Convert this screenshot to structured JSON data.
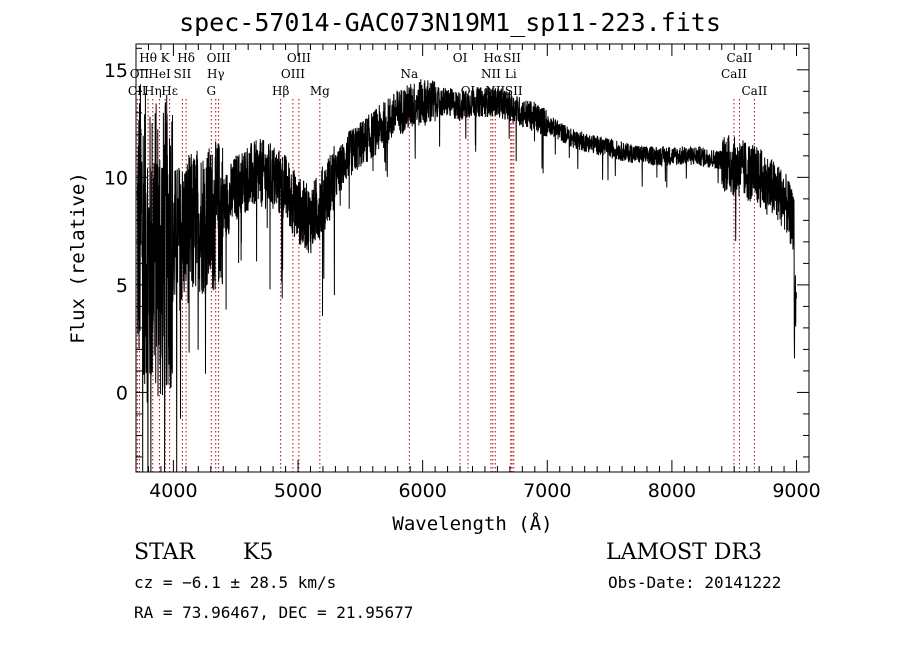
{
  "chart_data": {
    "type": "line",
    "title": "spec-57014-GAC073N19M1_sp11-223.fits",
    "xlabel": "Wavelength (Å)",
    "ylabel": "Flux (relative)",
    "xlim": [
      3700,
      9100
    ],
    "ylim": [
      -3.7,
      16.2
    ],
    "xticks": [
      4000,
      5000,
      6000,
      7000,
      8000,
      9000
    ],
    "yticks": [
      0,
      5,
      10,
      15
    ],
    "line_color": "#000000",
    "marker_color": "#b00000",
    "series": [
      {
        "name": "spectrum",
        "x": [
          3700,
          3750,
          3800,
          3850,
          3900,
          3950,
          4000,
          4100,
          4200,
          4300,
          4400,
          4500,
          4600,
          4700,
          4800,
          4900,
          5000,
          5100,
          5200,
          5300,
          5400,
          5500,
          5600,
          5700,
          5800,
          5900,
          6000,
          6100,
          6200,
          6300,
          6400,
          6500,
          6600,
          6700,
          6800,
          6900,
          7000,
          7200,
          7400,
          7600,
          7800,
          8000,
          8200,
          8400,
          8500,
          8600,
          8700,
          8800,
          8900,
          9000
        ],
        "y": [
          7,
          8,
          6,
          7,
          6,
          7,
          7,
          7.5,
          8,
          8,
          8.5,
          9.5,
          10,
          10.2,
          10,
          9.5,
          8.5,
          8,
          9,
          10,
          11,
          11.5,
          12,
          12.5,
          13,
          13.3,
          13.5,
          13.5,
          13.5,
          13.3,
          13.5,
          13.5,
          13.5,
          13.3,
          13,
          12.8,
          12.5,
          11.8,
          11.5,
          11.2,
          11,
          11,
          11,
          10.8,
          10.5,
          10.3,
          10,
          9.5,
          9,
          7.5
        ]
      }
    ],
    "line_markers": [
      {
        "label": "Hθ",
        "x": 3797,
        "row": 1
      },
      {
        "label": "OII",
        "x": 3727,
        "row": 2
      },
      {
        "label": "Hη",
        "x": 3835,
        "row": 3
      },
      {
        "label": "CII",
        "x": 3710,
        "row": 3
      },
      {
        "label": "K",
        "x": 3934,
        "row": 1
      },
      {
        "label": "HeI",
        "x": 3889,
        "row": 2
      },
      {
        "label": "Hε",
        "x": 3970,
        "row": 3
      },
      {
        "label": "SII",
        "x": 4072,
        "row": 2
      },
      {
        "label": "Hδ",
        "x": 4102,
        "row": 1
      },
      {
        "label": "OIII",
        "x": 4363,
        "row": 1
      },
      {
        "label": "Hγ",
        "x": 4340,
        "row": 2
      },
      {
        "label": "G",
        "x": 4304,
        "row": 3
      },
      {
        "label": "Hβ",
        "x": 4861,
        "row": 3
      },
      {
        "label": "OIII",
        "x": 5007,
        "row": 1
      },
      {
        "label": "OIII",
        "x": 4959,
        "row": 2
      },
      {
        "label": "Mg",
        "x": 5175,
        "row": 3
      },
      {
        "label": "Na",
        "x": 5893,
        "row": 2
      },
      {
        "label": "OI",
        "x": 6300,
        "row": 1
      },
      {
        "label": "OI",
        "x": 6364,
        "row": 3
      },
      {
        "label": "Hα",
        "x": 6563,
        "row": 1
      },
      {
        "label": "NII",
        "x": 6548,
        "row": 2
      },
      {
        "label": "NII",
        "x": 6583,
        "row": 3
      },
      {
        "label": "SII",
        "x": 6717,
        "row": 1
      },
      {
        "label": "Li",
        "x": 6707,
        "row": 2
      },
      {
        "label": "SII",
        "x": 6731,
        "row": 3
      },
      {
        "label": "CaII",
        "x": 8542,
        "row": 1
      },
      {
        "label": "CaII",
        "x": 8498,
        "row": 2
      },
      {
        "label": "CaII",
        "x": 8662,
        "row": 3
      }
    ]
  },
  "info": {
    "obj_type": "STAR",
    "subclass": "K5",
    "survey": "LAMOST DR3",
    "cz": "cz = −6.1 ± 28.5 km/s",
    "obs_date": "Obs-Date: 20141222",
    "radec": "RA =  73.96467, DEC =  21.95677"
  }
}
